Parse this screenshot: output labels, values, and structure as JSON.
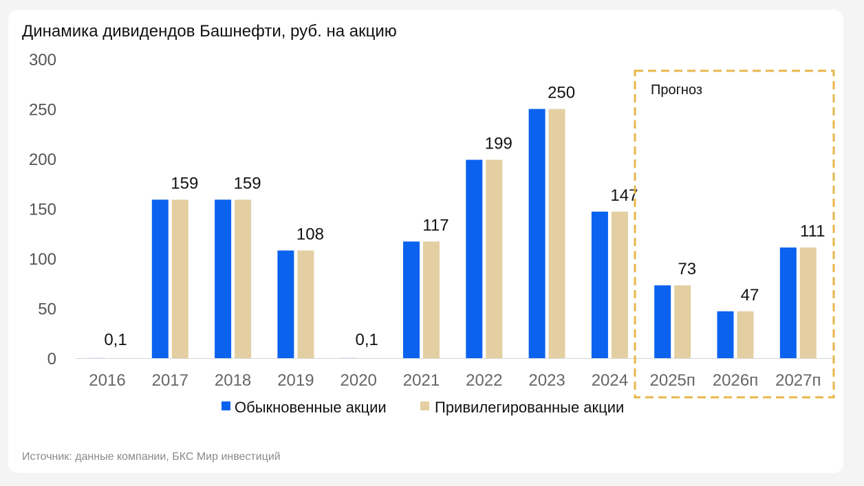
{
  "source": "Источник: данные компании, БКС Мир инвестиций",
  "chart_data": {
    "type": "bar",
    "title": "Динамика дивидендов Башнефти, руб. на акцию",
    "categories": [
      "2016",
      "2017",
      "2018",
      "2019",
      "2020",
      "2021",
      "2022",
      "2023",
      "2024",
      "2025п",
      "2026п",
      "2027п"
    ],
    "series": [
      {
        "name": "Обыкновенные акции",
        "values": [
          0.1,
          159,
          159,
          108,
          0.1,
          117,
          199,
          250,
          147,
          73,
          47,
          111
        ],
        "color": "#0a62ee"
      },
      {
        "name": "Привилегированные акции",
        "values": [
          0.1,
          159,
          159,
          108,
          0.1,
          117,
          199,
          250,
          147,
          73,
          47,
          111
        ],
        "color": "#e4cfa2"
      }
    ],
    "data_labels": [
      "0,1",
      "159",
      "159",
      "108",
      "0,1",
      "117",
      "199",
      "250",
      "147",
      "73",
      "47",
      "111"
    ],
    "yticks": [
      "0",
      "50",
      "100",
      "150",
      "200",
      "250",
      "300"
    ],
    "ylim": [
      0,
      300
    ],
    "grid": false,
    "legend": "bottom",
    "annotation": {
      "label": "Прогноз",
      "range": [
        "2025п",
        "2027п"
      ],
      "color": "#e8b64a"
    }
  }
}
